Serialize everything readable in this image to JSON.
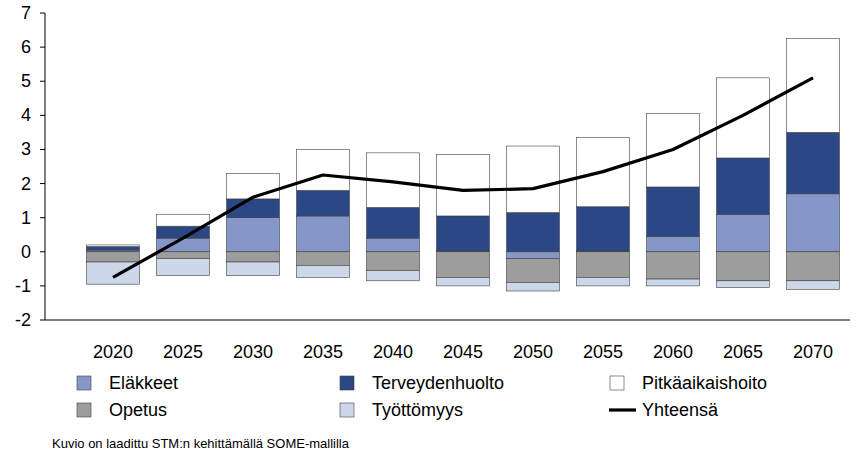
{
  "chart_data": {
    "type": "bar",
    "stacked": true,
    "grid": false,
    "legend": "bottom",
    "categories": [
      "2020",
      "2025",
      "2030",
      "2035",
      "2040",
      "2045",
      "2050",
      "2055",
      "2060",
      "2065",
      "2070"
    ],
    "ylim": [
      -2,
      7
    ],
    "yticks": [
      -2,
      -1,
      0,
      1,
      2,
      3,
      4,
      5,
      6,
      7
    ],
    "series": [
      {
        "name": "Eläkkeet",
        "type": "bar",
        "color": "#8497c6",
        "values": [
          0.05,
          0.4,
          1.0,
          1.05,
          0.4,
          0.02,
          -0.2,
          0.02,
          0.45,
          1.1,
          1.7
        ]
      },
      {
        "name": "Terveydenhuolto",
        "type": "bar",
        "color": "#2b4785",
        "values": [
          0.1,
          0.35,
          0.55,
          0.75,
          0.9,
          1.03,
          1.15,
          1.3,
          1.45,
          1.65,
          1.8
        ]
      },
      {
        "name": "Pitkäaikaishoito",
        "type": "bar",
        "color": "#ffffff",
        "values": [
          0.05,
          0.35,
          0.75,
          1.2,
          1.6,
          1.8,
          1.95,
          2.03,
          2.15,
          2.35,
          2.75
        ]
      },
      {
        "name": "Opetus",
        "type": "bar",
        "color": "#9d9d9d",
        "values": [
          -0.3,
          -0.2,
          -0.3,
          -0.4,
          -0.55,
          -0.75,
          -0.7,
          -0.75,
          -0.8,
          -0.85,
          -0.85
        ]
      },
      {
        "name": "Työttömyys",
        "type": "bar",
        "color": "#cdd7ea",
        "values": [
          -0.65,
          -0.5,
          -0.4,
          -0.35,
          -0.3,
          -0.25,
          -0.25,
          -0.25,
          -0.2,
          -0.2,
          -0.25
        ]
      },
      {
        "name": "Yhteensä",
        "type": "line",
        "color": "#000000",
        "values": [
          -0.75,
          0.4,
          1.6,
          2.25,
          2.05,
          1.8,
          1.85,
          2.35,
          3.0,
          4.0,
          5.1
        ]
      }
    ],
    "annotations": [
      "Kuvio on laadittu STM:n kehittämällä SOME-mallilla"
    ]
  }
}
